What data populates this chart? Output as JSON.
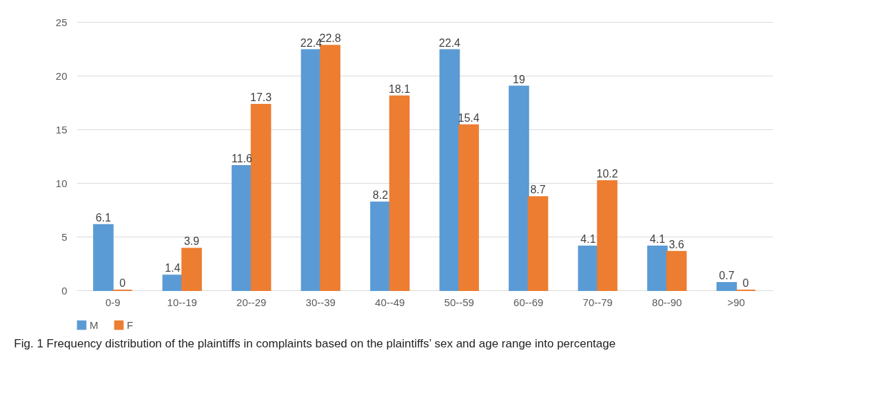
{
  "chart_data": {
    "type": "bar",
    "categories": [
      "0-9",
      "10--19",
      "20--29",
      "30--39",
      "40--49",
      "50--59",
      "60--69",
      "70--79",
      "80--90",
      ">90"
    ],
    "series": [
      {
        "name": "M",
        "color": "#5b9bd5",
        "values": [
          6.1,
          1.4,
          11.6,
          22.4,
          8.2,
          22.4,
          19,
          4.1,
          4.1,
          0.7
        ]
      },
      {
        "name": "F",
        "color": "#ed7d31",
        "values": [
          0,
          3.9,
          17.3,
          22.8,
          18.1,
          15.4,
          8.7,
          10.2,
          3.6,
          0
        ]
      }
    ],
    "ylim": [
      0,
      25
    ],
    "yticks": [
      0,
      5,
      10,
      15,
      20,
      25
    ],
    "grid": "y",
    "legend": "bottom",
    "data_labels": true,
    "annotations": [
      "Fig. 1 Frequency distribution of the plaintiffs in complaints based on the plaintiffs’ sex and age range into percentage"
    ]
  }
}
